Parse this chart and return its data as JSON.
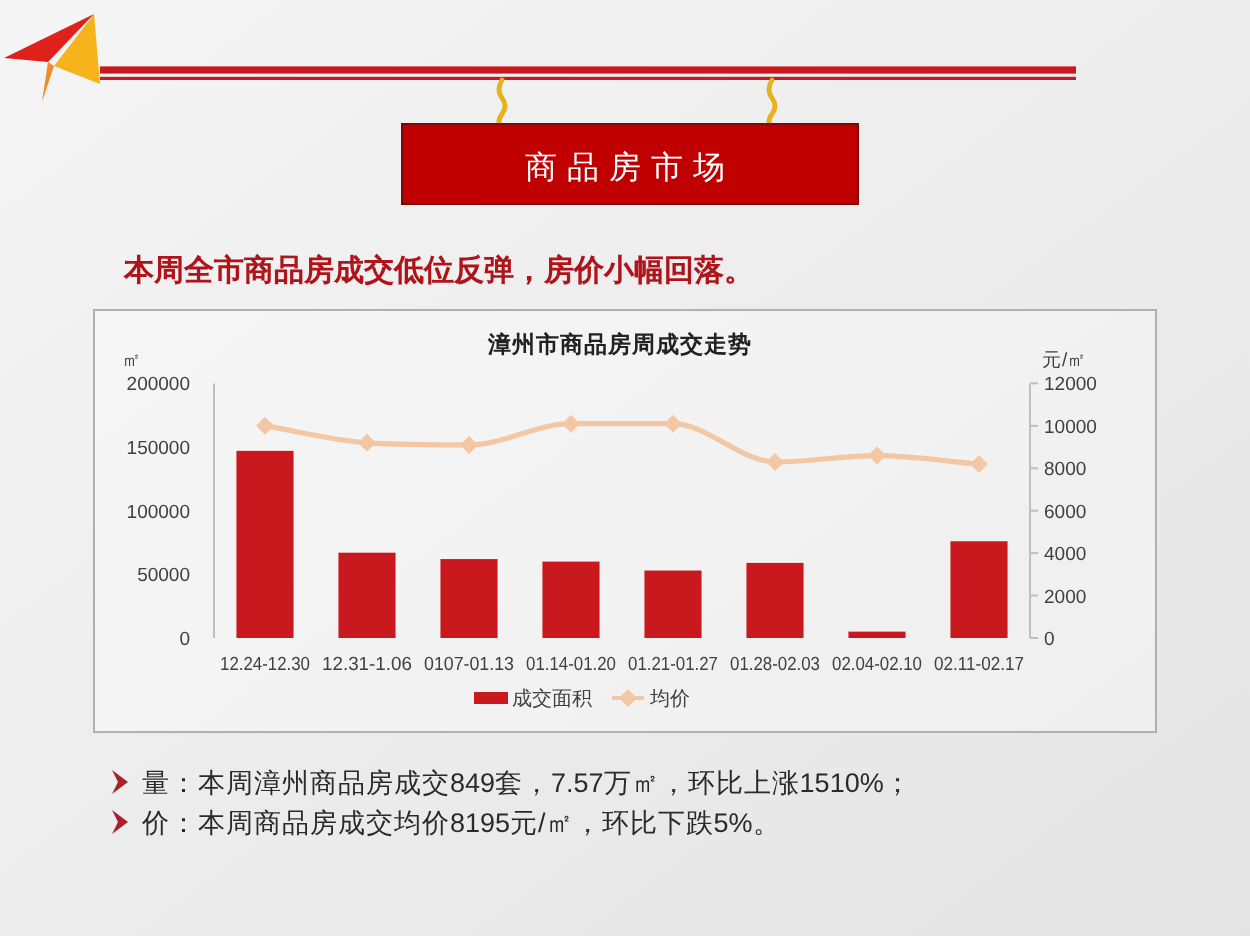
{
  "chart_data": {
    "type": "bar",
    "title": "漳州市商品房周成交走势",
    "subtitle": "本周全市商品房成交低位反弹，房价小幅回落。",
    "ylabel": "㎡",
    "y2label": "元/㎡",
    "categories": [
      "12.24-12.30",
      "12.31-1.06",
      "0107-01.13",
      "01.14-01.20",
      "01.21-01.27",
      "01.28-02.03",
      "02.04-02.10",
      "02.11-02.17"
    ],
    "series": [
      {
        "name": "成交面积",
        "color": "#c9191e",
        "values": [
          147000,
          67000,
          62000,
          60000,
          53000,
          59000,
          5000,
          76000
        ]
      },
      {
        "name": "均价",
        "type": "line",
        "axis": "y2",
        "color": "#f3c7a4",
        "values": [
          10000,
          9200,
          9100,
          10100,
          10100,
          8300,
          8600,
          8200
        ]
      }
    ],
    "ylim": [
      0,
      200000
    ],
    "yticks": [
      0,
      50000,
      100000,
      150000,
      200000
    ],
    "y2lim": [
      0,
      12000
    ],
    "y2ticks": [
      0,
      2000,
      4000,
      6000,
      8000,
      10000,
      12000
    ],
    "marker": "diamond",
    "legend": "bottom",
    "annotations": [
      "商品房市场",
      "量：本周漳州商品房成交849套，7.57万㎡，环比上涨1510%；",
      "价：本周商品房成交均价8195元/㎡，环比下跌5%。"
    ]
  }
}
